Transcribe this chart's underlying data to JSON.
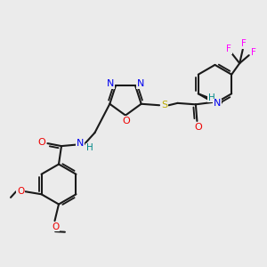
{
  "bg_color": "#ebebeb",
  "atom_colors": {
    "N": "#0000ee",
    "O": "#ee0000",
    "S": "#bbaa00",
    "H": "#008888",
    "F": "#ff00ff",
    "C": "#1a1a1a"
  },
  "bond_color": "#1a1a1a",
  "lw": 1.5
}
